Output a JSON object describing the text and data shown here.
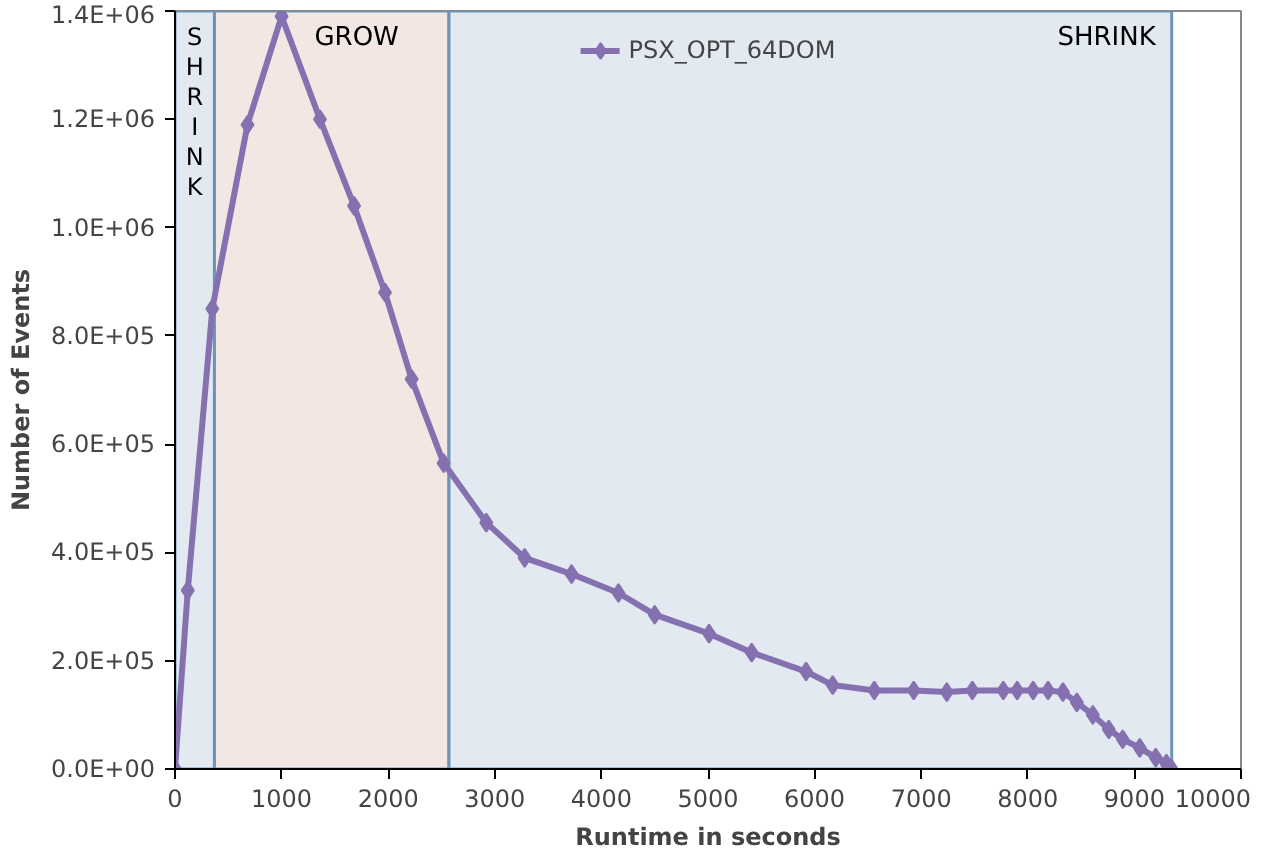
{
  "chart_data": {
    "type": "line",
    "xlabel": "Runtime in seconds",
    "ylabel": "Number of Events",
    "x": [
      0,
      120,
      350,
      680,
      1000,
      1360,
      1680,
      1970,
      2220,
      2520,
      2920,
      3280,
      3720,
      4160,
      4500,
      5010,
      5410,
      5920,
      6170,
      6560,
      6930,
      7240,
      7480,
      7770,
      7900,
      8050,
      8190,
      8330,
      8460,
      8610,
      8760,
      8890,
      9050,
      9200,
      9300,
      9350
    ],
    "series": [
      {
        "name": "PSX_OPT_64DOM",
        "color": "#8571b0",
        "values": [
          0,
          330000,
          850000,
          1190000,
          1390000,
          1200000,
          1040000,
          880000,
          720000,
          565000,
          455000,
          390000,
          360000,
          325000,
          285000,
          250000,
          215000,
          180000,
          155000,
          145000,
          145000,
          142000,
          145000,
          145000,
          145000,
          145000,
          145000,
          142000,
          123000,
          100000,
          73000,
          55000,
          39000,
          21000,
          10000,
          0
        ]
      }
    ],
    "xlim": [
      0,
      10000
    ],
    "xticks": [
      0,
      1000,
      2000,
      3000,
      4000,
      5000,
      6000,
      7000,
      8000,
      9000,
      10000
    ],
    "ylim": [
      0,
      1400000
    ],
    "yticks": [
      {
        "value": 0,
        "label": "0.0E+00"
      },
      {
        "value": 200000,
        "label": "2.0E+05"
      },
      {
        "value": 400000,
        "label": "4.0E+05"
      },
      {
        "value": 600000,
        "label": "6.0E+05"
      },
      {
        "value": 800000,
        "label": "8.0E+05"
      },
      {
        "value": 1000000,
        "label": "1.0E+06"
      },
      {
        "value": 1200000,
        "label": "1.2E+06"
      },
      {
        "value": 1400000,
        "label": "1.4E+06"
      }
    ],
    "bands": [
      {
        "axis": "x",
        "from": 0,
        "to": 370,
        "label": "SHRINK",
        "color": "#e3e9f1"
      },
      {
        "axis": "x",
        "from": 370,
        "to": 2570,
        "label": "GROW",
        "color": "#f2e7e3"
      },
      {
        "axis": "x",
        "from": 2570,
        "to": 9350,
        "label": "SHRINK",
        "color": "#e3e9f1"
      }
    ],
    "legend": "top",
    "marker": "diamond",
    "line_style": "solid",
    "grid": false
  }
}
